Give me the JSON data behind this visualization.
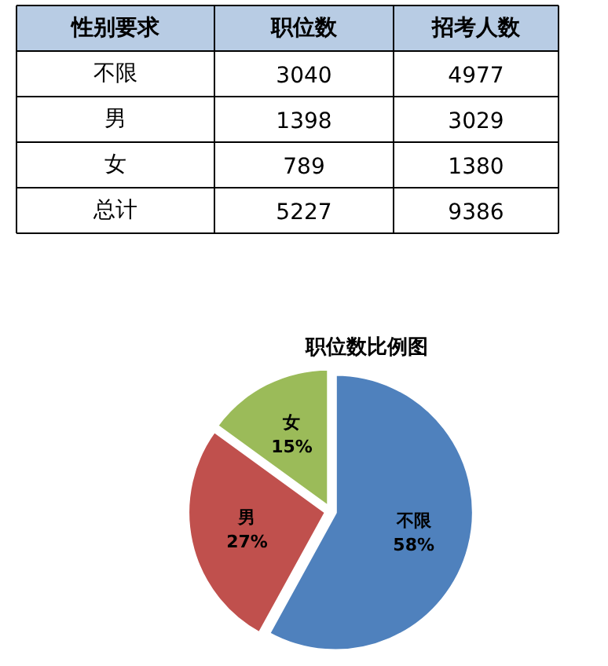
{
  "chart_data": [
    {
      "type": "other",
      "xlabel": "性别要求",
      "categories": [
        "不限",
        "男",
        "女",
        "总计"
      ],
      "series": [
        {
          "name": "职位数",
          "values": [
            3040,
            1398,
            789,
            5227
          ]
        },
        {
          "name": "招考人数",
          "values": [
            4977,
            3029,
            1380,
            9386
          ]
        }
      ],
      "data_labels": true
    },
    {
      "type": "pie",
      "title": "职位数比例图",
      "categories": [
        "不限",
        "男",
        "女"
      ],
      "values": [
        58,
        27,
        15
      ],
      "colors": [
        "#4f81bd",
        "#c0504d",
        "#9bbb59"
      ],
      "value_labels": [
        "58%",
        "27%",
        "15%"
      ]
    }
  ]
}
